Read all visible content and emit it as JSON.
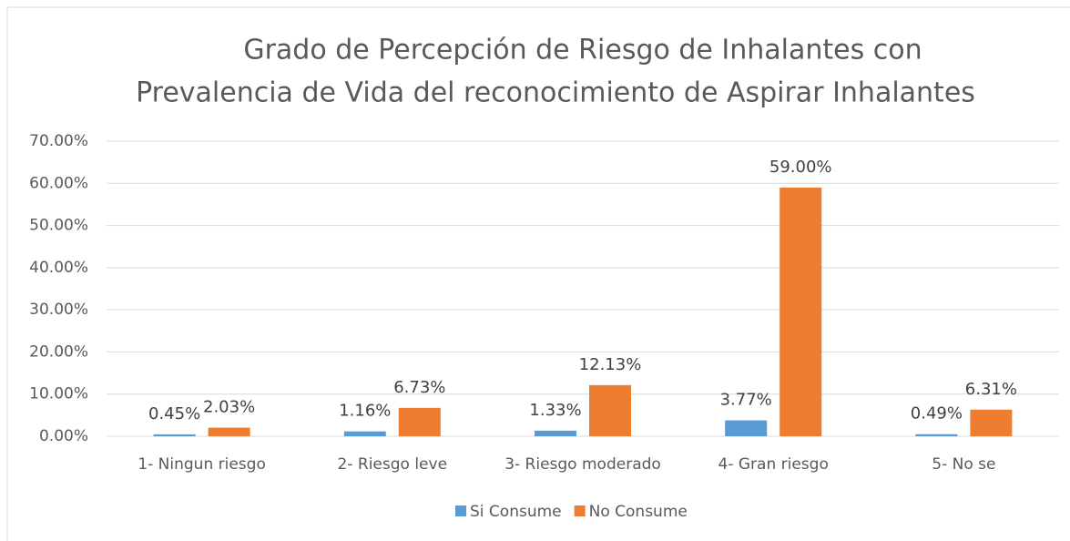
{
  "chart_data": {
    "type": "bar",
    "title": [
      "Grado de Percepción de Riesgo de Inhalantes con",
      "Prevalencia de Vida del reconocimiento de Aspirar Inhalantes"
    ],
    "categories": [
      "1- Ningun riesgo",
      "2- Riesgo leve",
      "3- Riesgo moderado",
      "4- Gran riesgo",
      "5- No se"
    ],
    "series": [
      {
        "name": "Si Consume",
        "color": "#5b9bd5",
        "values": [
          0.45,
          1.16,
          1.33,
          3.77,
          0.49
        ],
        "value_labels": [
          "0.45%",
          "1.16%",
          "1.33%",
          "3.77%",
          "0.49%"
        ]
      },
      {
        "name": "No Consume",
        "color": "#ed7d31",
        "values": [
          2.03,
          6.73,
          12.13,
          59.0,
          6.31
        ],
        "value_labels": [
          "2.03%",
          "6.73%",
          "12.13%",
          "59.00%",
          "6.31%"
        ]
      }
    ],
    "ylim": [
      0,
      70
    ],
    "yticks": [
      {
        "value": 0,
        "label": "0.00%"
      },
      {
        "value": 10,
        "label": "10.00%"
      },
      {
        "value": 20,
        "label": "20.00%"
      },
      {
        "value": 30,
        "label": "30.00%"
      },
      {
        "value": 40,
        "label": "40.00%"
      },
      {
        "value": 50,
        "label": "50.00%"
      },
      {
        "value": 60,
        "label": "60.00%"
      },
      {
        "value": 70,
        "label": "70.00%"
      }
    ],
    "grid": true,
    "legend": "bottom"
  }
}
